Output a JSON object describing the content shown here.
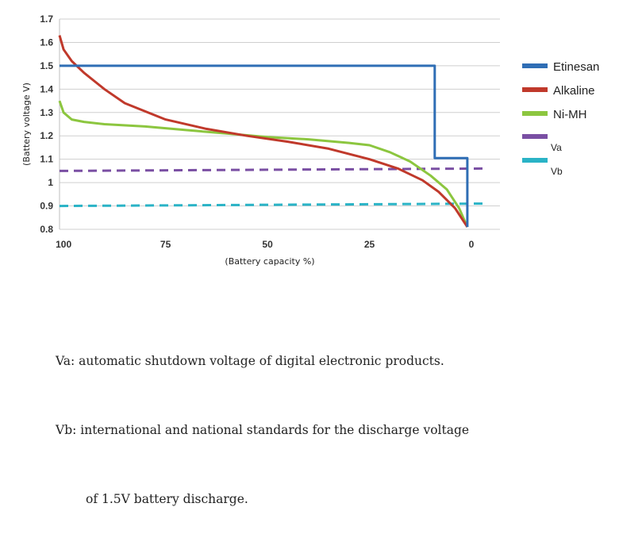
{
  "chart_data": {
    "type": "line",
    "xlabel": "(Battery capacity %)",
    "ylabel": "(Battery voltage V)",
    "x_ticks": [
      "100",
      "75",
      "50",
      "25",
      "0"
    ],
    "y_ticks": [
      "0.8",
      "0.9",
      "1",
      "1.1",
      "1.2",
      "1.3",
      "1.4",
      "1.5",
      "1.6",
      "1.7"
    ],
    "xlim": [
      101,
      -7
    ],
    "ylim": [
      0.8,
      1.7
    ],
    "x_direction": "reversed",
    "grid": "horizontal",
    "legend_position": "right",
    "series": [
      {
        "name": "Etinesan",
        "color": "#2f6eb5",
        "style": "solid",
        "x": [
          101,
          9,
          9,
          1,
          1
        ],
        "y": [
          1.5,
          1.5,
          1.105,
          1.105,
          0.81
        ]
      },
      {
        "name": "Alkaline",
        "color": "#c0392b",
        "style": "solid",
        "x": [
          101,
          100,
          98,
          95,
          90,
          85,
          75,
          65,
          55,
          45,
          35,
          25,
          18,
          12,
          8,
          4,
          1
        ],
        "y": [
          1.63,
          1.57,
          1.52,
          1.47,
          1.4,
          1.34,
          1.27,
          1.23,
          1.2,
          1.175,
          1.145,
          1.1,
          1.06,
          1.01,
          0.96,
          0.89,
          0.81
        ]
      },
      {
        "name": "Ni-MH",
        "color": "#8cc63f",
        "style": "solid",
        "x": [
          101,
          100,
          98,
          95,
          90,
          80,
          70,
          60,
          50,
          40,
          30,
          25,
          20,
          15,
          10,
          6,
          3,
          1
        ],
        "y": [
          1.35,
          1.3,
          1.27,
          1.26,
          1.25,
          1.24,
          1.225,
          1.21,
          1.195,
          1.185,
          1.17,
          1.16,
          1.13,
          1.09,
          1.03,
          0.97,
          0.89,
          0.81
        ]
      },
      {
        "name": "Va",
        "color": "#7a4fa3",
        "style": "dashed",
        "x": [
          101,
          -3
        ],
        "y": [
          1.05,
          1.06
        ]
      },
      {
        "name": "Vb",
        "color": "#2ab3c6",
        "style": "dashed",
        "x": [
          101,
          -3
        ],
        "y": [
          0.9,
          0.91
        ]
      }
    ]
  },
  "notes": {
    "va": "Va: automatic shutdown voltage of digital electronic products.",
    "vb_line1": "Vb: international and national standards for the discharge voltage",
    "vb_line2": "of 1.5V battery discharge."
  }
}
